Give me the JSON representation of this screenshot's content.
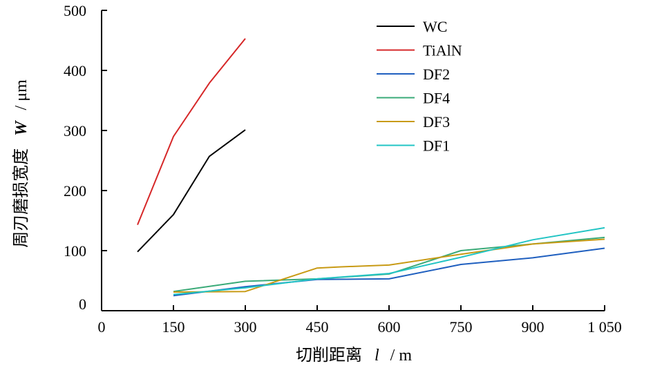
{
  "chart_data": {
    "type": "line",
    "xlabel": "切削距离",
    "xlabel_var": "l",
    "xlabel_unit": "/ m",
    "ylabel": "周刃磨损宽度",
    "ylabel_var": "W",
    "ylabel_unit": "/ μm",
    "xlim": [
      0,
      1050
    ],
    "ylim": [
      0,
      500
    ],
    "x_ticks": [
      0,
      150,
      300,
      450,
      600,
      750,
      900,
      1050
    ],
    "x_tick_labels": [
      "0",
      "150",
      "300",
      "450",
      "600",
      "750",
      "900",
      "1 050"
    ],
    "y_ticks": [
      0,
      100,
      200,
      300,
      400,
      500
    ],
    "y_tick_labels": [
      "0",
      "100",
      "200",
      "300",
      "400",
      "500"
    ],
    "grid": false,
    "legend_position": "top-right",
    "series": [
      {
        "name": "WC",
        "color": "#000000",
        "x": [
          75,
          150,
          225,
          300
        ],
        "y": [
          98,
          160,
          257,
          301
        ]
      },
      {
        "name": "TiAlN",
        "color": "#d62728",
        "x": [
          75,
          150,
          225,
          300
        ],
        "y": [
          143,
          290,
          379,
          453
        ]
      },
      {
        "name": "DF2",
        "color": "#1f5fbf",
        "x": [
          150,
          300,
          450,
          600,
          750,
          900,
          1050
        ],
        "y": [
          25,
          40,
          52,
          53,
          77,
          88,
          104
        ]
      },
      {
        "name": "DF4",
        "color": "#3aaa78",
        "x": [
          150,
          300,
          450,
          600,
          750,
          900,
          1050
        ],
        "y": [
          32,
          49,
          53,
          61,
          100,
          111,
          122
        ]
      },
      {
        "name": "DF3",
        "color": "#c89a14",
        "x": [
          150,
          300,
          450,
          500,
          600,
          750,
          900,
          1050
        ],
        "y": [
          31,
          32,
          71,
          73,
          76,
          94,
          111,
          119
        ]
      },
      {
        "name": "DF1",
        "color": "#22c4c4",
        "x": [
          150,
          300,
          450,
          600,
          750,
          900,
          1050
        ],
        "y": [
          27,
          38,
          53,
          62,
          89,
          118,
          138
        ]
      }
    ]
  }
}
